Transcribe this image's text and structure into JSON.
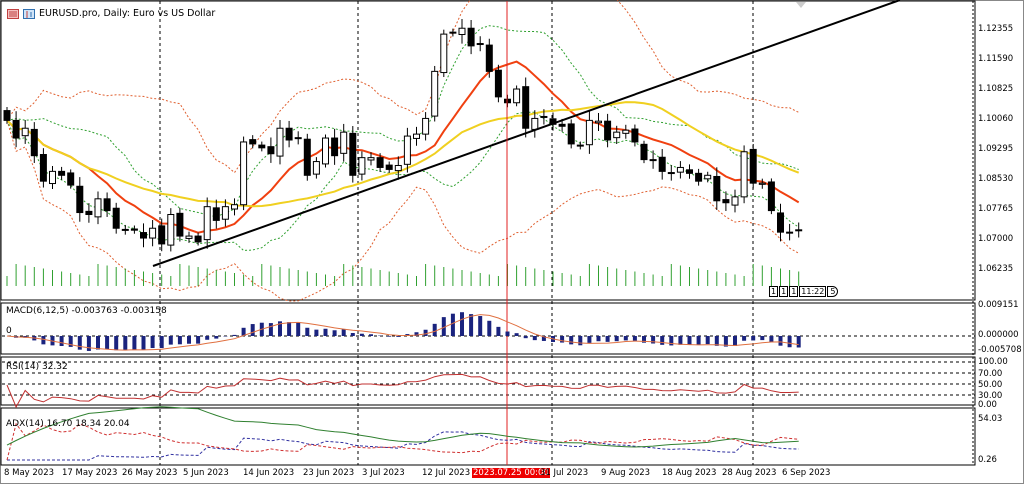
{
  "window": {
    "title": "EURUSD.pro, Daily:  Euro vs US Dollar"
  },
  "main_axis": [
    "1.12355",
    "1.11590",
    "1.10825",
    "1.10060",
    "1.09295",
    "1.08530",
    "1.07765",
    "1.07000",
    "1.06235"
  ],
  "macd": {
    "label": "MACD(6,12,5) -0.003763 -0.003158",
    "axis": [
      "0.009151",
      "0.000000",
      "-0.005708"
    ],
    "zero_label": "0"
  },
  "rsi": {
    "label": "RSI(14) 32.32",
    "axis": [
      "100.00",
      "70.00",
      "50.00",
      "30.00",
      "0.00"
    ]
  },
  "adx": {
    "label": "ADX(14) 16.70 18.34 20.04",
    "axis": [
      "54.03",
      "0.26"
    ]
  },
  "dates": [
    "8 May 2023",
    "17 May 2023",
    "26 May 2023",
    "5 Jun 2023",
    "14 Jun 2023",
    "23 Jun 2023",
    "3 Jul 2023",
    "12 Jul 2023",
    "2023.07.25 00:00",
    "31 Jul 2023",
    "9 Aug 2023",
    "18 Aug 2023",
    "28 Aug 2023",
    "6 Sep 2023"
  ],
  "timer": {
    "boxes": [
      "1",
      "1",
      "1"
    ],
    "time": "11:22",
    "tag": "5"
  },
  "colors": {
    "bull": "#ffffff",
    "bear": "#000000",
    "ma_fast": "#f04010",
    "ma_slow": "#f0d020",
    "bands_outer": "#e06030",
    "bands_inner": "#30a030",
    "macd": "#1a237e",
    "signal": "#e07040",
    "rsi": "#c03030",
    "adx": "#308030",
    "pdi": "#3030a0",
    "mdi": "#d03030",
    "volume": "#30a030",
    "cursor": "#e02020"
  },
  "chart_data": {
    "type": "candlestick",
    "symbol": "EURUSD.pro",
    "timeframe": "Daily",
    "start": "8 May 2023",
    "end": "6 Sep 2023",
    "ylim": [
      1.0605,
      1.13
    ],
    "closes": [
      1.1005,
      1.096,
      1.0985,
      1.0915,
      1.085,
      1.0875,
      1.0865,
      1.084,
      1.077,
      1.0765,
      1.0805,
      1.0775,
      1.073,
      1.0725,
      1.0725,
      1.0705,
      1.073,
      1.069,
      1.0765,
      1.071,
      1.071,
      1.0695,
      1.0785,
      1.075,
      1.0785,
      1.079,
      1.095,
      1.0945,
      1.0935,
      1.092,
      1.0985,
      1.0955,
      1.096,
      1.0865,
      1.09,
      1.096,
      1.0915,
      1.0975,
      1.0865,
      1.091,
      1.091,
      1.0885,
      1.088,
      1.089,
      1.0965,
      1.097,
      1.101,
      1.113,
      1.1225,
      1.123,
      1.124,
      1.1195,
      1.12,
      1.113,
      1.1065,
      1.105,
      1.1085,
      1.0985,
      1.101,
      1.1015,
      1.0995,
      1.099,
      1.0945,
      1.094,
      1.1005,
      1.1003,
      1.0955,
      1.0975,
      1.098,
      1.095,
      1.0905,
      1.0905,
      1.0875,
      1.087,
      1.0885,
      1.087,
      1.085,
      1.0865,
      1.08,
      1.0795,
      1.081,
      1.0925,
      1.0845,
      1.0845,
      1.0775,
      1.072,
      1.072,
      1.0725
    ],
    "trendline": {
      "from": [
        "31 May 2023",
        1.064
      ],
      "to": [
        "beyond 6 Sep 2023",
        1.13
      ]
    }
  }
}
